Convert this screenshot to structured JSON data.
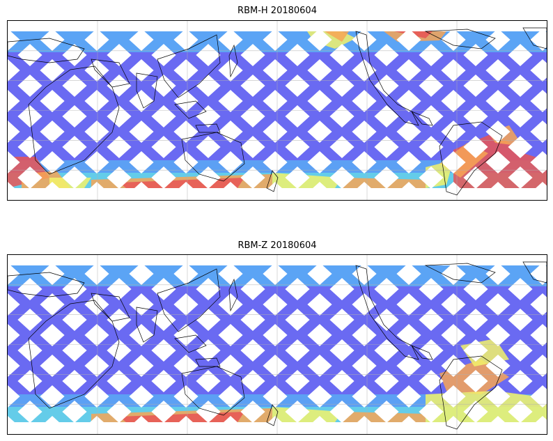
{
  "panels": [
    {
      "title": "RBM-H 20180604",
      "colors": {
        "base": "#6a6af2",
        "mid": "#57b8f5",
        "cyan": "#6cf0e0",
        "yellow": "#f2f26a",
        "orange": "#f7a555",
        "red": "#e85555"
      },
      "warm_regions": [
        "north-pacific-mid",
        "south-ocean-west",
        "south-ocean-center",
        "south-atlantic"
      ]
    },
    {
      "title": "RBM-Z 20180604",
      "colors": {
        "base": "#6a6af2",
        "mid": "#57b8f5",
        "cyan": "#6cf0e0",
        "yellow": "#f2f26a",
        "orange": "#f7a555",
        "red": "#e85555"
      },
      "warm_regions": [
        "south-ocean-center",
        "south-atlantic-light"
      ]
    }
  ]
}
